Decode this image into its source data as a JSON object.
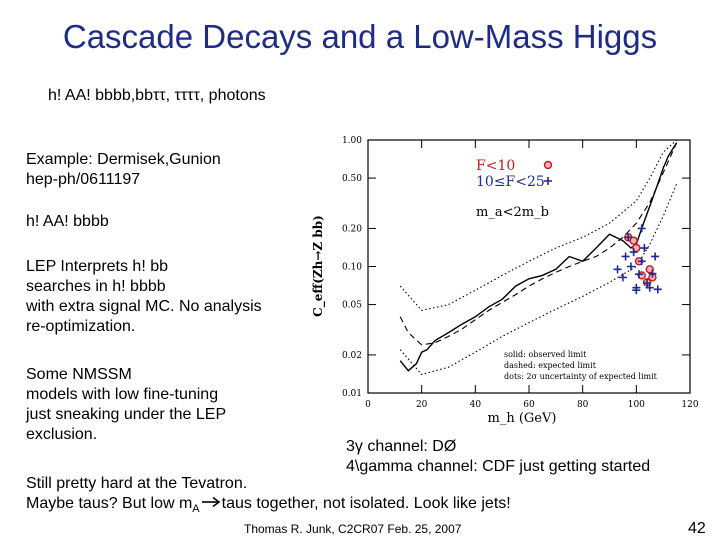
{
  "title": "Cascade Decays and a Low-Mass Higgs",
  "subtitle": "h! AA! bbbb,bbττ, ττττ, photons",
  "left_text": {
    "example_l1": "Example:  Dermisek,Gunion",
    "example_l2": "hep-ph/0611197",
    "channel": "h! AA! bbbb",
    "lep_l1": "LEP Interprets h! bb",
    "lep_l2": "searches in h! bbbb",
    "lep_l3": "with extra signal MC.  No analysis",
    "lep_l4": "re-optimization.",
    "nmssm_l1": "Some NMSSM",
    "nmssm_l2": "models with low fine-tuning",
    "nmssm_l3": "just sneaking under the LEP",
    "nmssm_l4": "exclusion."
  },
  "photon_l1": "3γ channel: DØ",
  "photon_l2": "4\\gamma channel:  CDF just getting started",
  "tevatron_l1": "Still pretty hard at the Tevatron.",
  "tevatron_l2_a": "Maybe taus?  But low m",
  "tevatron_l2_sub": "A",
  "tevatron_l2_b": "taus together, not isolated.  Look like jets!",
  "footer": "Thomas R. Junk, C2CR07 Feb. 25, 2007",
  "page_number": "42",
  "colors": {
    "title": "#1f2c86",
    "legend_red": "#c8191e",
    "legend_blue": "#1c2a9a"
  },
  "chart_data": {
    "type": "scatter",
    "xlabel": "m_h (GeV)",
    "ylabel": "C_eff(Zh→Z bb)",
    "xlim": [
      0,
      120
    ],
    "ylim": [
      0.01,
      1.0
    ],
    "yscale": "log",
    "x_ticks": [
      "0",
      "20",
      "40",
      "60",
      "80",
      "100",
      "120"
    ],
    "y_ticks": [
      "0.01",
      "0.02",
      "0.05",
      "0.10",
      "0.20",
      "0.50",
      "1.00"
    ],
    "y_tick_values": [
      0.01,
      0.02,
      0.05,
      0.1,
      0.2,
      0.5,
      1.0
    ],
    "legend": {
      "f_low": "F<10",
      "f_mid": "10≤F<25",
      "ma_cut": "m_a<2m_b"
    },
    "annotation_lines": [
      "solid: observed limit",
      "dashed: expected limit",
      "dots: 2σ uncertainty of expected limit"
    ],
    "series": [
      {
        "name": "observed limit",
        "style": "solid",
        "x": [
          12,
          15,
          18,
          20,
          22,
          25,
          30,
          35,
          40,
          45,
          50,
          55,
          60,
          65,
          70,
          75,
          80,
          85,
          90,
          95,
          98,
          100,
          102,
          105,
          108,
          110,
          112,
          115
        ],
        "y": [
          0.018,
          0.015,
          0.017,
          0.021,
          0.022,
          0.026,
          0.03,
          0.035,
          0.04,
          0.048,
          0.055,
          0.07,
          0.08,
          0.085,
          0.095,
          0.12,
          0.11,
          0.14,
          0.18,
          0.16,
          0.14,
          0.15,
          0.2,
          0.3,
          0.45,
          0.6,
          0.75,
          0.95
        ]
      },
      {
        "name": "expected limit",
        "style": "dashed",
        "x": [
          12,
          15,
          20,
          25,
          30,
          35,
          40,
          45,
          50,
          55,
          60,
          65,
          70,
          75,
          80,
          85,
          90,
          95,
          100,
          105,
          110,
          115
        ],
        "y": [
          0.04,
          0.03,
          0.024,
          0.025,
          0.028,
          0.032,
          0.038,
          0.045,
          0.052,
          0.06,
          0.07,
          0.08,
          0.09,
          0.1,
          0.11,
          0.12,
          0.14,
          0.17,
          0.22,
          0.32,
          0.55,
          0.95
        ]
      },
      {
        "name": "expected +2 sigma",
        "style": "dotted",
        "x": [
          12,
          20,
          30,
          40,
          50,
          60,
          70,
          80,
          90,
          100,
          105,
          110,
          115
        ],
        "y": [
          0.07,
          0.045,
          0.05,
          0.065,
          0.085,
          0.11,
          0.14,
          0.17,
          0.22,
          0.33,
          0.5,
          0.8,
          1.0
        ]
      },
      {
        "name": "expected -2 sigma",
        "style": "dotted",
        "x": [
          12,
          20,
          30,
          40,
          50,
          60,
          70,
          80,
          90,
          100,
          105,
          110,
          115
        ],
        "y": [
          0.022,
          0.014,
          0.016,
          0.021,
          0.028,
          0.036,
          0.046,
          0.058,
          0.075,
          0.1,
          0.15,
          0.25,
          0.45
        ]
      },
      {
        "name": "F<10",
        "style": "red-diamond",
        "x": [
          97,
          99,
          100,
          101,
          102,
          104,
          105,
          106
        ],
        "y": [
          0.17,
          0.16,
          0.14,
          0.11,
          0.085,
          0.075,
          0.095,
          0.082
        ]
      },
      {
        "name": "10≤F<25",
        "style": "blue-plus",
        "x": [
          93,
          95,
          96,
          97,
          98,
          99,
          100,
          100,
          101,
          102,
          102,
          103,
          104,
          105,
          106,
          107,
          108
        ],
        "y": [
          0.095,
          0.082,
          0.12,
          0.17,
          0.1,
          0.13,
          0.065,
          0.068,
          0.087,
          0.11,
          0.2,
          0.14,
          0.074,
          0.068,
          0.088,
          0.12,
          0.066
        ]
      }
    ]
  }
}
